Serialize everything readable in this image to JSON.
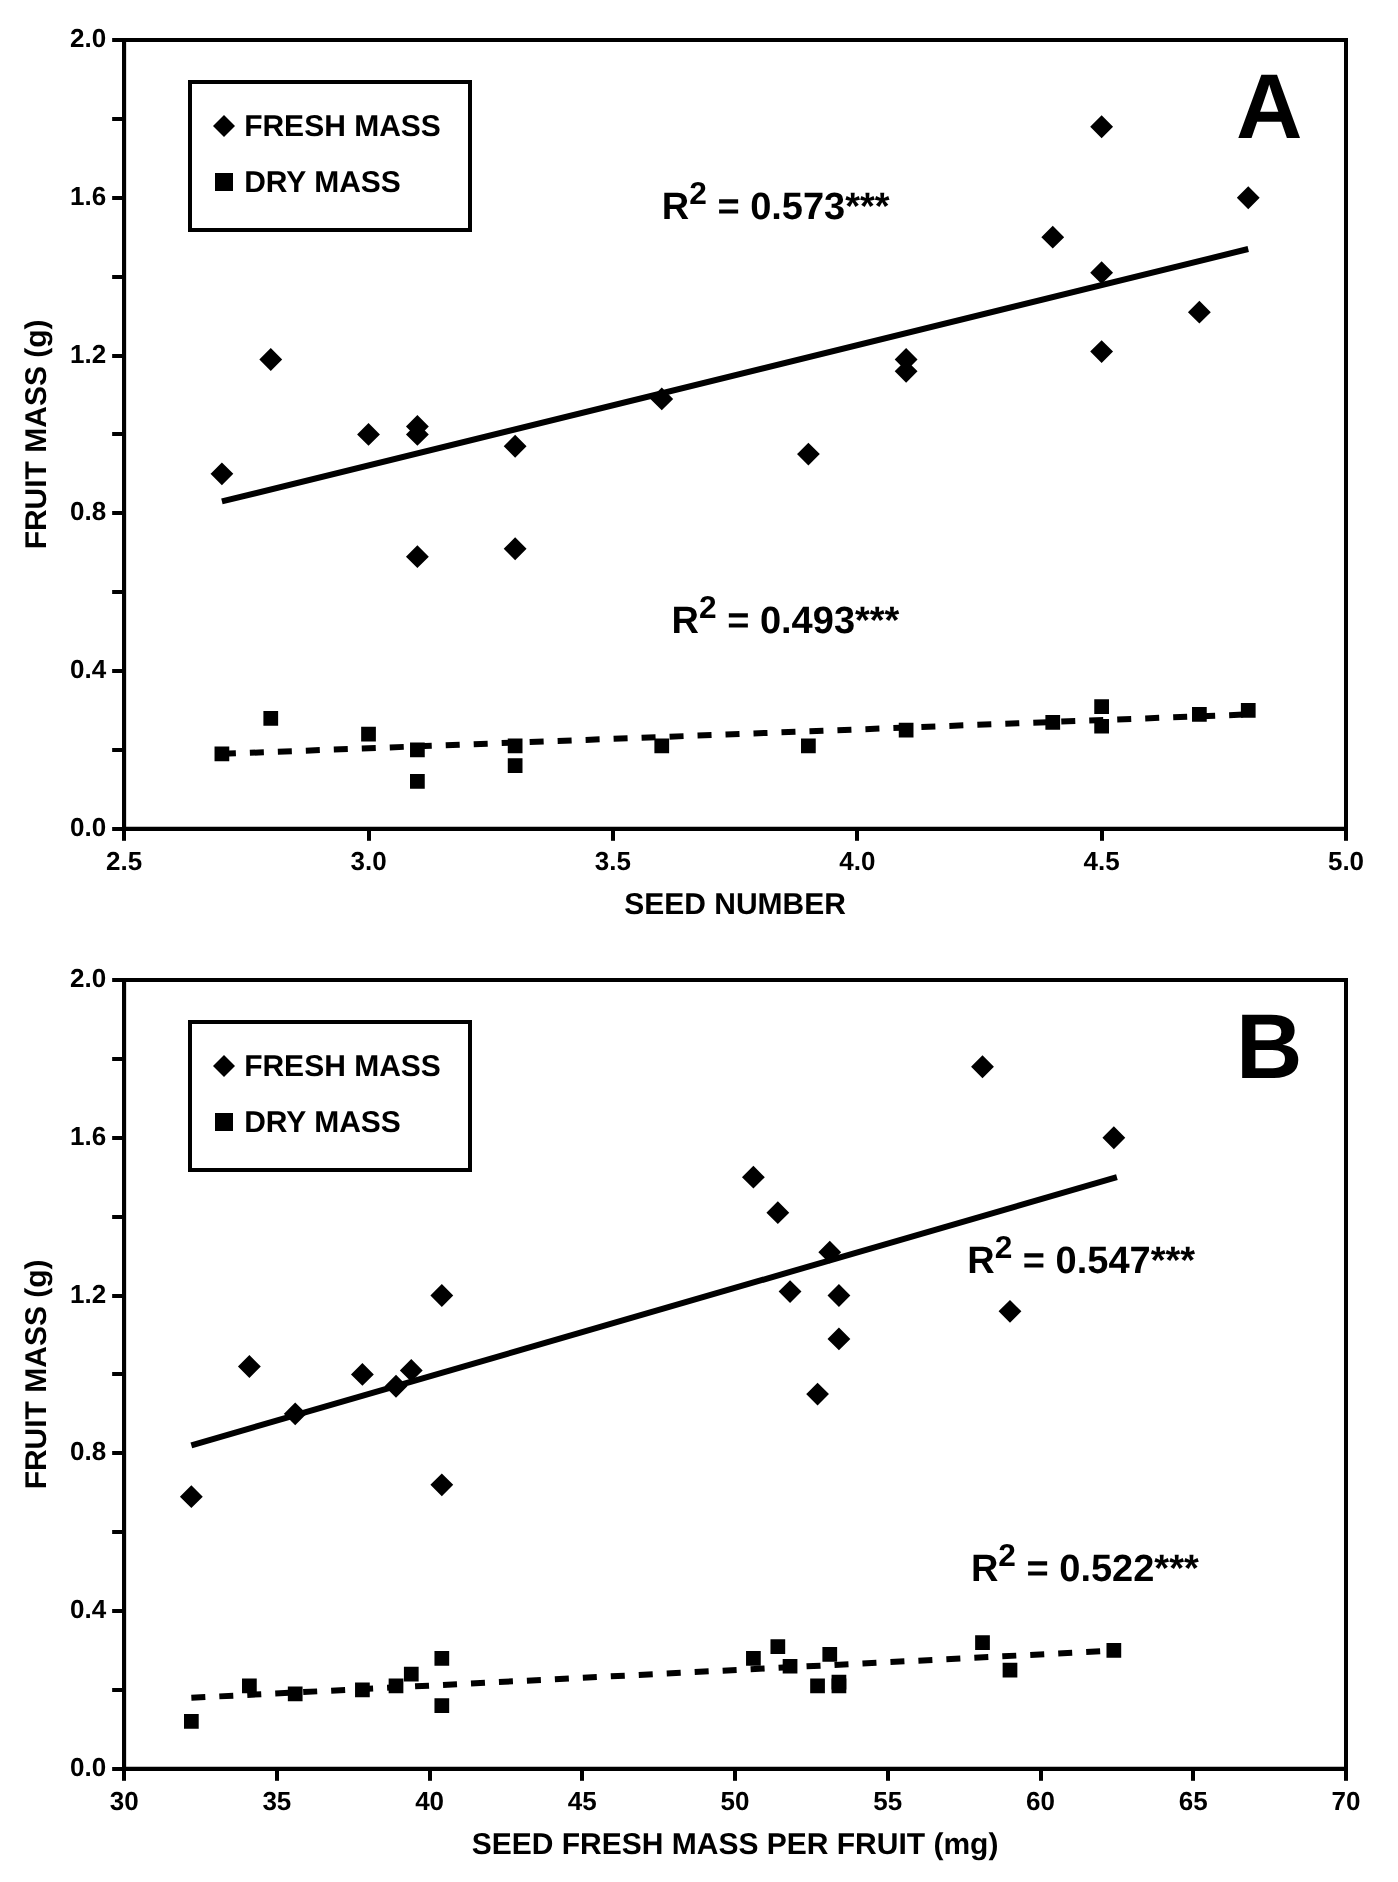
{
  "chart_data": [
    {
      "type": "scatter",
      "xlabel": "SEED NUMBER",
      "ylabel": "FRUIT MASS (g)",
      "xlim": [
        2.5,
        5.0
      ],
      "ylim": [
        0,
        2.0
      ],
      "xticks": [
        2.5,
        {
          "value": 3,
          "label": "3.0"
        },
        3.5,
        {
          "value": 4,
          "label": "4.0"
        },
        4.5,
        {
          "value": 5,
          "label": "5.0"
        }
      ],
      "yticks": [
        {
          "value": 0,
          "label": "0.0"
        },
        {
          "value": 0.2,
          "label": null
        },
        0.4,
        {
          "value": 0.6,
          "label": null
        },
        0.8,
        {
          "value": 1.0,
          "label": null
        },
        1.2,
        {
          "value": 1.4,
          "label": null
        },
        1.6,
        {
          "value": 1.8,
          "label": null
        },
        {
          "value": 2,
          "label": "2.0"
        }
      ],
      "grid": false,
      "legend": "top left",
      "annotations": [
        "A",
        "R$^{2}$ = 0.573***",
        "R$^{2}$ = 0.493***"
      ],
      "series": [
        {
          "name": "FRESH MASS",
          "color": "#000000",
          "marker": "diamond",
          "x": [
            2.7,
            2.8,
            3.0,
            3.1,
            3.1,
            3.1,
            3.3,
            3.3,
            3.6,
            3.9,
            4.1,
            4.1,
            4.4,
            4.5,
            4.5,
            4.5,
            4.7,
            4.8
          ],
          "values": [
            0.9,
            1.19,
            1.0,
            1.02,
            1.0,
            0.69,
            0.97,
            0.71,
            1.09,
            0.95,
            1.19,
            1.16,
            1.5,
            1.78,
            1.41,
            1.21,
            1.31,
            1.6
          ]
        },
        {
          "name": "DRY MASS",
          "color": "#000000",
          "marker": "square",
          "x": [
            2.7,
            2.8,
            3.0,
            3.1,
            3.1,
            3.3,
            3.3,
            3.6,
            3.9,
            4.1,
            4.4,
            4.5,
            4.5,
            4.7,
            4.8
          ],
          "values": [
            0.19,
            0.28,
            0.24,
            0.2,
            0.12,
            0.21,
            0.16,
            0.21,
            0.21,
            0.25,
            0.27,
            0.31,
            0.26,
            0.29,
            0.3
          ]
        },
        {
          "type": "line",
          "color": "#000000",
          "line_style": "solid",
          "marker": "none",
          "x": [
            2.7,
            4.8
          ],
          "values": [
            0.83,
            1.47
          ]
        },
        {
          "type": "line",
          "color": "#000000",
          "line_style": "dashed",
          "marker": "none",
          "x": [
            2.7,
            4.8
          ],
          "values": [
            0.19,
            0.29
          ]
        }
      ]
    },
    {
      "type": "scatter",
      "xlabel": "SEED FRESH MASS PER FRUIT (mg)",
      "ylabel": "FRUIT MASS (g)",
      "xlim": [
        30,
        70
      ],
      "ylim": [
        0,
        2.0
      ],
      "xticks": [
        30,
        35,
        40,
        45,
        50,
        55,
        60,
        65,
        70
      ],
      "yticks": [
        {
          "value": 0,
          "label": "0.0"
        },
        {
          "value": 0.2,
          "label": null
        },
        0.4,
        {
          "value": 0.6,
          "label": null
        },
        0.8,
        {
          "value": 1.0,
          "label": null
        },
        1.2,
        {
          "value": 1.4,
          "label": null
        },
        1.6,
        {
          "value": 1.8,
          "label": null
        },
        {
          "value": 2,
          "label": "2.0"
        }
      ],
      "grid": false,
      "legend": "top left",
      "annotations": [
        "B",
        "R$^{2}$ = 0.547***",
        "R$^{2}$ = 0.522***"
      ],
      "series": [
        {
          "name": "FRESH MASS",
          "color": "#000000",
          "marker": "diamond",
          "x": [
            32.2,
            34.1,
            35.6,
            37.8,
            38.9,
            39.4,
            40.4,
            40.4,
            50.6,
            51.4,
            51.8,
            52.7,
            53.1,
            53.4,
            53.4,
            58.1,
            59.0,
            62.4
          ],
          "values": [
            0.69,
            1.02,
            0.9,
            1.0,
            0.97,
            1.01,
            1.2,
            0.72,
            1.5,
            1.41,
            1.21,
            0.95,
            1.31,
            1.2,
            1.09,
            1.78,
            1.16,
            1.6
          ]
        },
        {
          "name": "DRY MASS",
          "color": "#000000",
          "marker": "square",
          "x": [
            32.2,
            34.1,
            35.6,
            37.8,
            38.9,
            39.4,
            40.4,
            40.4,
            50.6,
            51.4,
            51.8,
            52.7,
            53.1,
            53.4,
            53.4,
            58.1,
            59.0,
            62.4
          ],
          "values": [
            0.12,
            0.21,
            0.19,
            0.2,
            0.21,
            0.24,
            0.28,
            0.16,
            0.28,
            0.31,
            0.26,
            0.21,
            0.29,
            0.22,
            0.21,
            0.32,
            0.25,
            0.3
          ]
        },
        {
          "type": "line",
          "color": "#000000",
          "line_style": "solid",
          "marker": "none",
          "x": [
            32.2,
            62.5
          ],
          "values": [
            0.82,
            1.5
          ]
        },
        {
          "type": "line",
          "color": "#000000",
          "line_style": "dashed",
          "marker": "none",
          "x": [
            32.2,
            62.5
          ],
          "values": [
            0.18,
            0.3
          ]
        }
      ]
    }
  ]
}
